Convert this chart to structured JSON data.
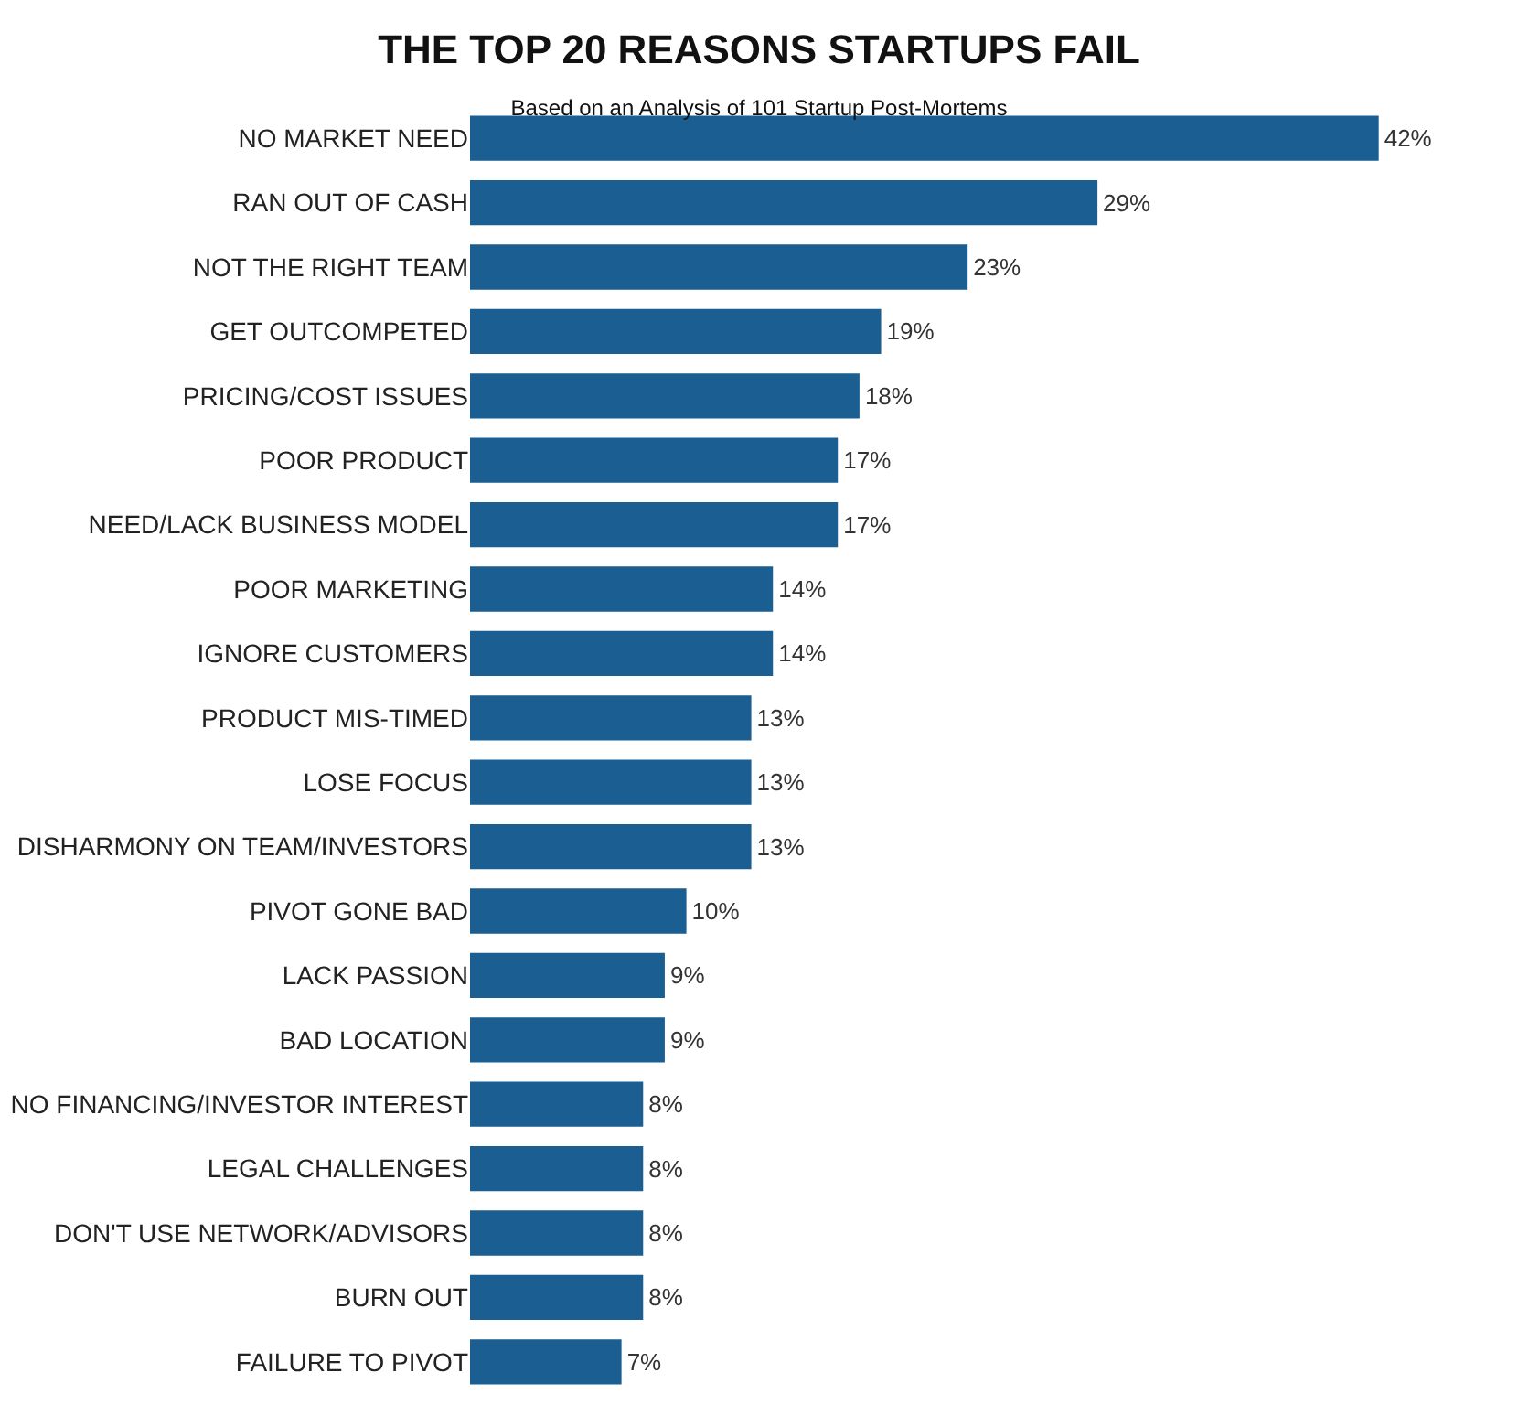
{
  "chart_data": {
    "type": "bar",
    "orientation": "horizontal",
    "title": "THE TOP 20 REASONS STARTUPS FAIL",
    "subtitle": "Based on an Analysis of 101 Startup Post-Mortems",
    "categories": [
      "NO MARKET NEED",
      "RAN OUT OF CASH",
      "NOT THE RIGHT TEAM",
      "GET OUTCOMPETED",
      "PRICING/COST ISSUES",
      "POOR PRODUCT",
      "NEED/LACK BUSINESS MODEL",
      "POOR MARKETING",
      "IGNORE CUSTOMERS",
      "PRODUCT MIS-TIMED",
      "LOSE FOCUS",
      "DISHARMONY ON TEAM/INVESTORS",
      "PIVOT GONE BAD",
      "LACK PASSION",
      "BAD LOCATION",
      "NO FINANCING/INVESTOR INTEREST",
      "LEGAL CHALLENGES",
      "DON'T USE NETWORK/ADVISORS",
      "BURN OUT",
      "FAILURE TO PIVOT"
    ],
    "values": [
      42,
      29,
      23,
      19,
      18,
      17,
      17,
      14,
      14,
      13,
      13,
      13,
      10,
      9,
      9,
      8,
      8,
      8,
      8,
      7
    ],
    "value_labels": [
      "42%",
      "29%",
      "23%",
      "19%",
      "18%",
      "17%",
      "17%",
      "14%",
      "14%",
      "13%",
      "13%",
      "13%",
      "10%",
      "9%",
      "9%",
      "8%",
      "8%",
      "8%",
      "8%",
      "7%"
    ],
    "color": "#1b5e91",
    "grid": false,
    "legend": false
  }
}
